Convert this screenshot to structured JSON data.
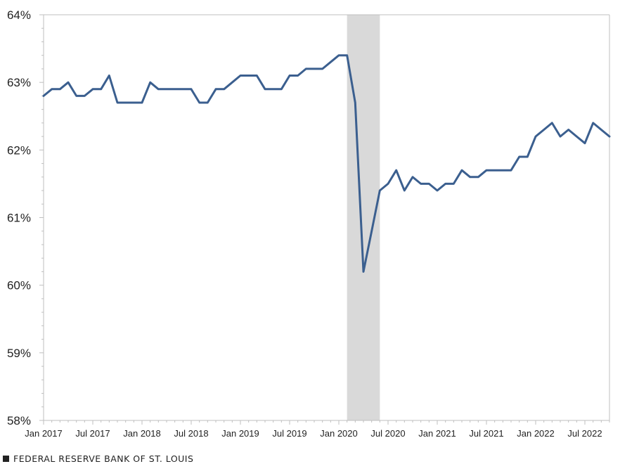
{
  "footer": {
    "text": "FEDERAL RESERVE BANK OF ST. LOUIS"
  },
  "colors": {
    "line": "#3B5F8F",
    "recession": "#D9D9D9",
    "axis": "#BFBFBF",
    "text": "#222222"
  },
  "chart_data": {
    "type": "line",
    "title": "",
    "xlabel": "",
    "ylabel": "",
    "ylim": [
      58,
      64
    ],
    "y_ticks": [
      58,
      59,
      60,
      61,
      62,
      63,
      64
    ],
    "y_tick_labels": [
      "58%",
      "59%",
      "60%",
      "61%",
      "62%",
      "63%",
      "64%"
    ],
    "x_tick_labels": [
      "Jan 2017",
      "Jul 2017",
      "Jan 2018",
      "Jul 2018",
      "Jan 2019",
      "Jul 2019",
      "Jan 2020",
      "Jul 2020",
      "Jan 2021",
      "Jul 2021",
      "Jan 2022",
      "Jul 2022"
    ],
    "x_start": "2017-01",
    "x_end": "2022-10",
    "recession_shading": {
      "start": "2020-02",
      "end": "2020-06"
    },
    "series": [
      {
        "x": [
          "2017-01",
          "2017-02",
          "2017-03",
          "2017-04",
          "2017-05",
          "2017-06",
          "2017-07",
          "2017-08",
          "2017-09",
          "2017-10",
          "2017-11",
          "2017-12",
          "2018-01",
          "2018-02",
          "2018-03",
          "2018-04",
          "2018-05",
          "2018-06",
          "2018-07",
          "2018-08",
          "2018-09",
          "2018-10",
          "2018-11",
          "2018-12",
          "2019-01",
          "2019-02",
          "2019-03",
          "2019-04",
          "2019-05",
          "2019-06",
          "2019-07",
          "2019-08",
          "2019-09",
          "2019-10",
          "2019-11",
          "2019-12",
          "2020-01",
          "2020-02",
          "2020-03",
          "2020-04",
          "2020-05",
          "2020-06",
          "2020-07",
          "2020-08",
          "2020-09",
          "2020-10",
          "2020-11",
          "2020-12",
          "2021-01",
          "2021-02",
          "2021-03",
          "2021-04",
          "2021-05",
          "2021-06",
          "2021-07",
          "2021-08",
          "2021-09",
          "2021-10",
          "2021-11",
          "2021-12",
          "2022-01",
          "2022-02",
          "2022-03",
          "2022-04",
          "2022-05",
          "2022-06",
          "2022-07",
          "2022-08",
          "2022-09",
          "2022-10"
        ],
        "values": [
          62.8,
          62.9,
          62.9,
          63.0,
          62.8,
          62.8,
          62.9,
          62.9,
          63.1,
          62.7,
          62.7,
          62.7,
          62.7,
          63.0,
          62.9,
          62.9,
          62.9,
          62.9,
          62.9,
          62.7,
          62.7,
          62.9,
          62.9,
          63.0,
          63.1,
          63.1,
          63.1,
          62.9,
          62.9,
          62.9,
          63.1,
          63.1,
          63.2,
          63.2,
          63.2,
          63.3,
          63.4,
          63.4,
          62.7,
          60.2,
          60.8,
          61.4,
          61.5,
          61.7,
          61.4,
          61.6,
          61.5,
          61.5,
          61.4,
          61.5,
          61.5,
          61.7,
          61.6,
          61.6,
          61.7,
          61.7,
          61.7,
          61.7,
          61.9,
          61.9,
          62.2,
          62.3,
          62.4,
          62.2,
          62.3,
          62.2,
          62.1,
          62.4,
          62.3,
          62.2
        ]
      }
    ]
  }
}
